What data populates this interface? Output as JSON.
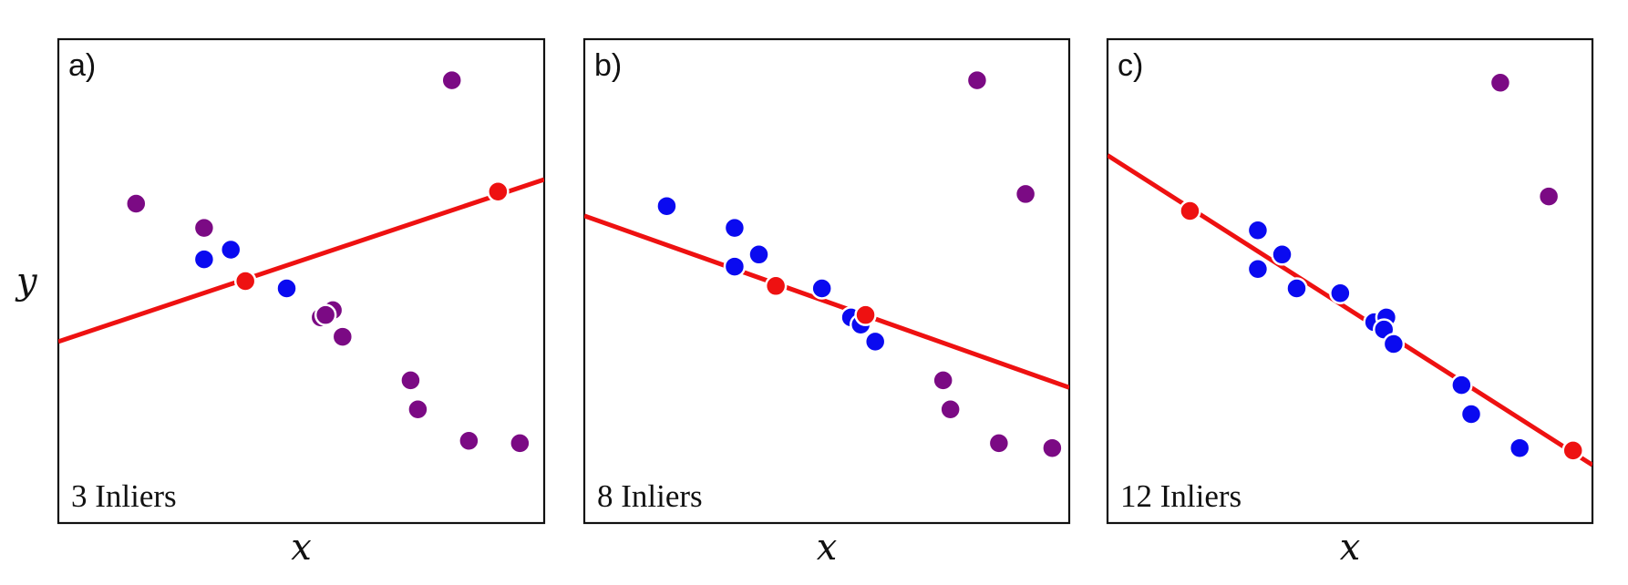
{
  "y_label": "y",
  "colors": {
    "inlier": "#0a0af0",
    "outlier": "#7b0a84",
    "sample": "#ee1111",
    "fit_line": "#ee1111"
  },
  "panels": [
    {
      "tag": "a)",
      "inlier_text": "3 Inliers",
      "x_label": "x",
      "fit_line": [
        [
          0.0,
          0.375
        ],
        [
          1.0,
          0.71
        ]
      ],
      "sample_points": [
        [
          0.385,
          0.5
        ],
        [
          0.905,
          0.685
        ]
      ],
      "inliers": [
        [
          0.3,
          0.545
        ],
        [
          0.355,
          0.565
        ],
        [
          0.47,
          0.485
        ]
      ],
      "outliers": [
        [
          0.16,
          0.66
        ],
        [
          0.3,
          0.61
        ],
        [
          0.81,
          0.915
        ],
        [
          0.54,
          0.425
        ],
        [
          0.565,
          0.44
        ],
        [
          0.55,
          0.43
        ],
        [
          0.585,
          0.385
        ],
        [
          0.725,
          0.295
        ],
        [
          0.74,
          0.235
        ],
        [
          0.845,
          0.17
        ],
        [
          0.95,
          0.165
        ]
      ]
    },
    {
      "tag": "b)",
      "inlier_text": "8 Inliers",
      "x_label": "x",
      "fit_line": [
        [
          0.0,
          0.635
        ],
        [
          1.0,
          0.28
        ]
      ],
      "sample_points": [
        [
          0.395,
          0.49
        ],
        [
          0.58,
          0.43
        ]
      ],
      "inliers": [
        [
          0.17,
          0.655
        ],
        [
          0.31,
          0.61
        ],
        [
          0.36,
          0.555
        ],
        [
          0.31,
          0.53
        ],
        [
          0.49,
          0.485
        ],
        [
          0.55,
          0.425
        ],
        [
          0.57,
          0.41
        ],
        [
          0.6,
          0.375
        ]
      ],
      "outliers": [
        [
          0.81,
          0.915
        ],
        [
          0.91,
          0.68
        ],
        [
          0.74,
          0.295
        ],
        [
          0.755,
          0.235
        ],
        [
          0.855,
          0.165
        ],
        [
          0.965,
          0.155
        ]
      ]
    },
    {
      "tag": "c)",
      "inlier_text": "12 Inliers",
      "x_label": "x",
      "fit_line": [
        [
          0.0,
          0.76
        ],
        [
          1.0,
          0.12
        ]
      ],
      "sample_points": [
        [
          0.17,
          0.645
        ],
        [
          0.96,
          0.15
        ]
      ],
      "inliers": [
        [
          0.31,
          0.605
        ],
        [
          0.36,
          0.555
        ],
        [
          0.31,
          0.525
        ],
        [
          0.39,
          0.485
        ],
        [
          0.48,
          0.475
        ],
        [
          0.55,
          0.415
        ],
        [
          0.575,
          0.425
        ],
        [
          0.57,
          0.4
        ],
        [
          0.59,
          0.37
        ],
        [
          0.73,
          0.285
        ],
        [
          0.75,
          0.225
        ],
        [
          0.85,
          0.155
        ]
      ],
      "outliers": [
        [
          0.81,
          0.91
        ],
        [
          0.91,
          0.675
        ]
      ]
    }
  ]
}
